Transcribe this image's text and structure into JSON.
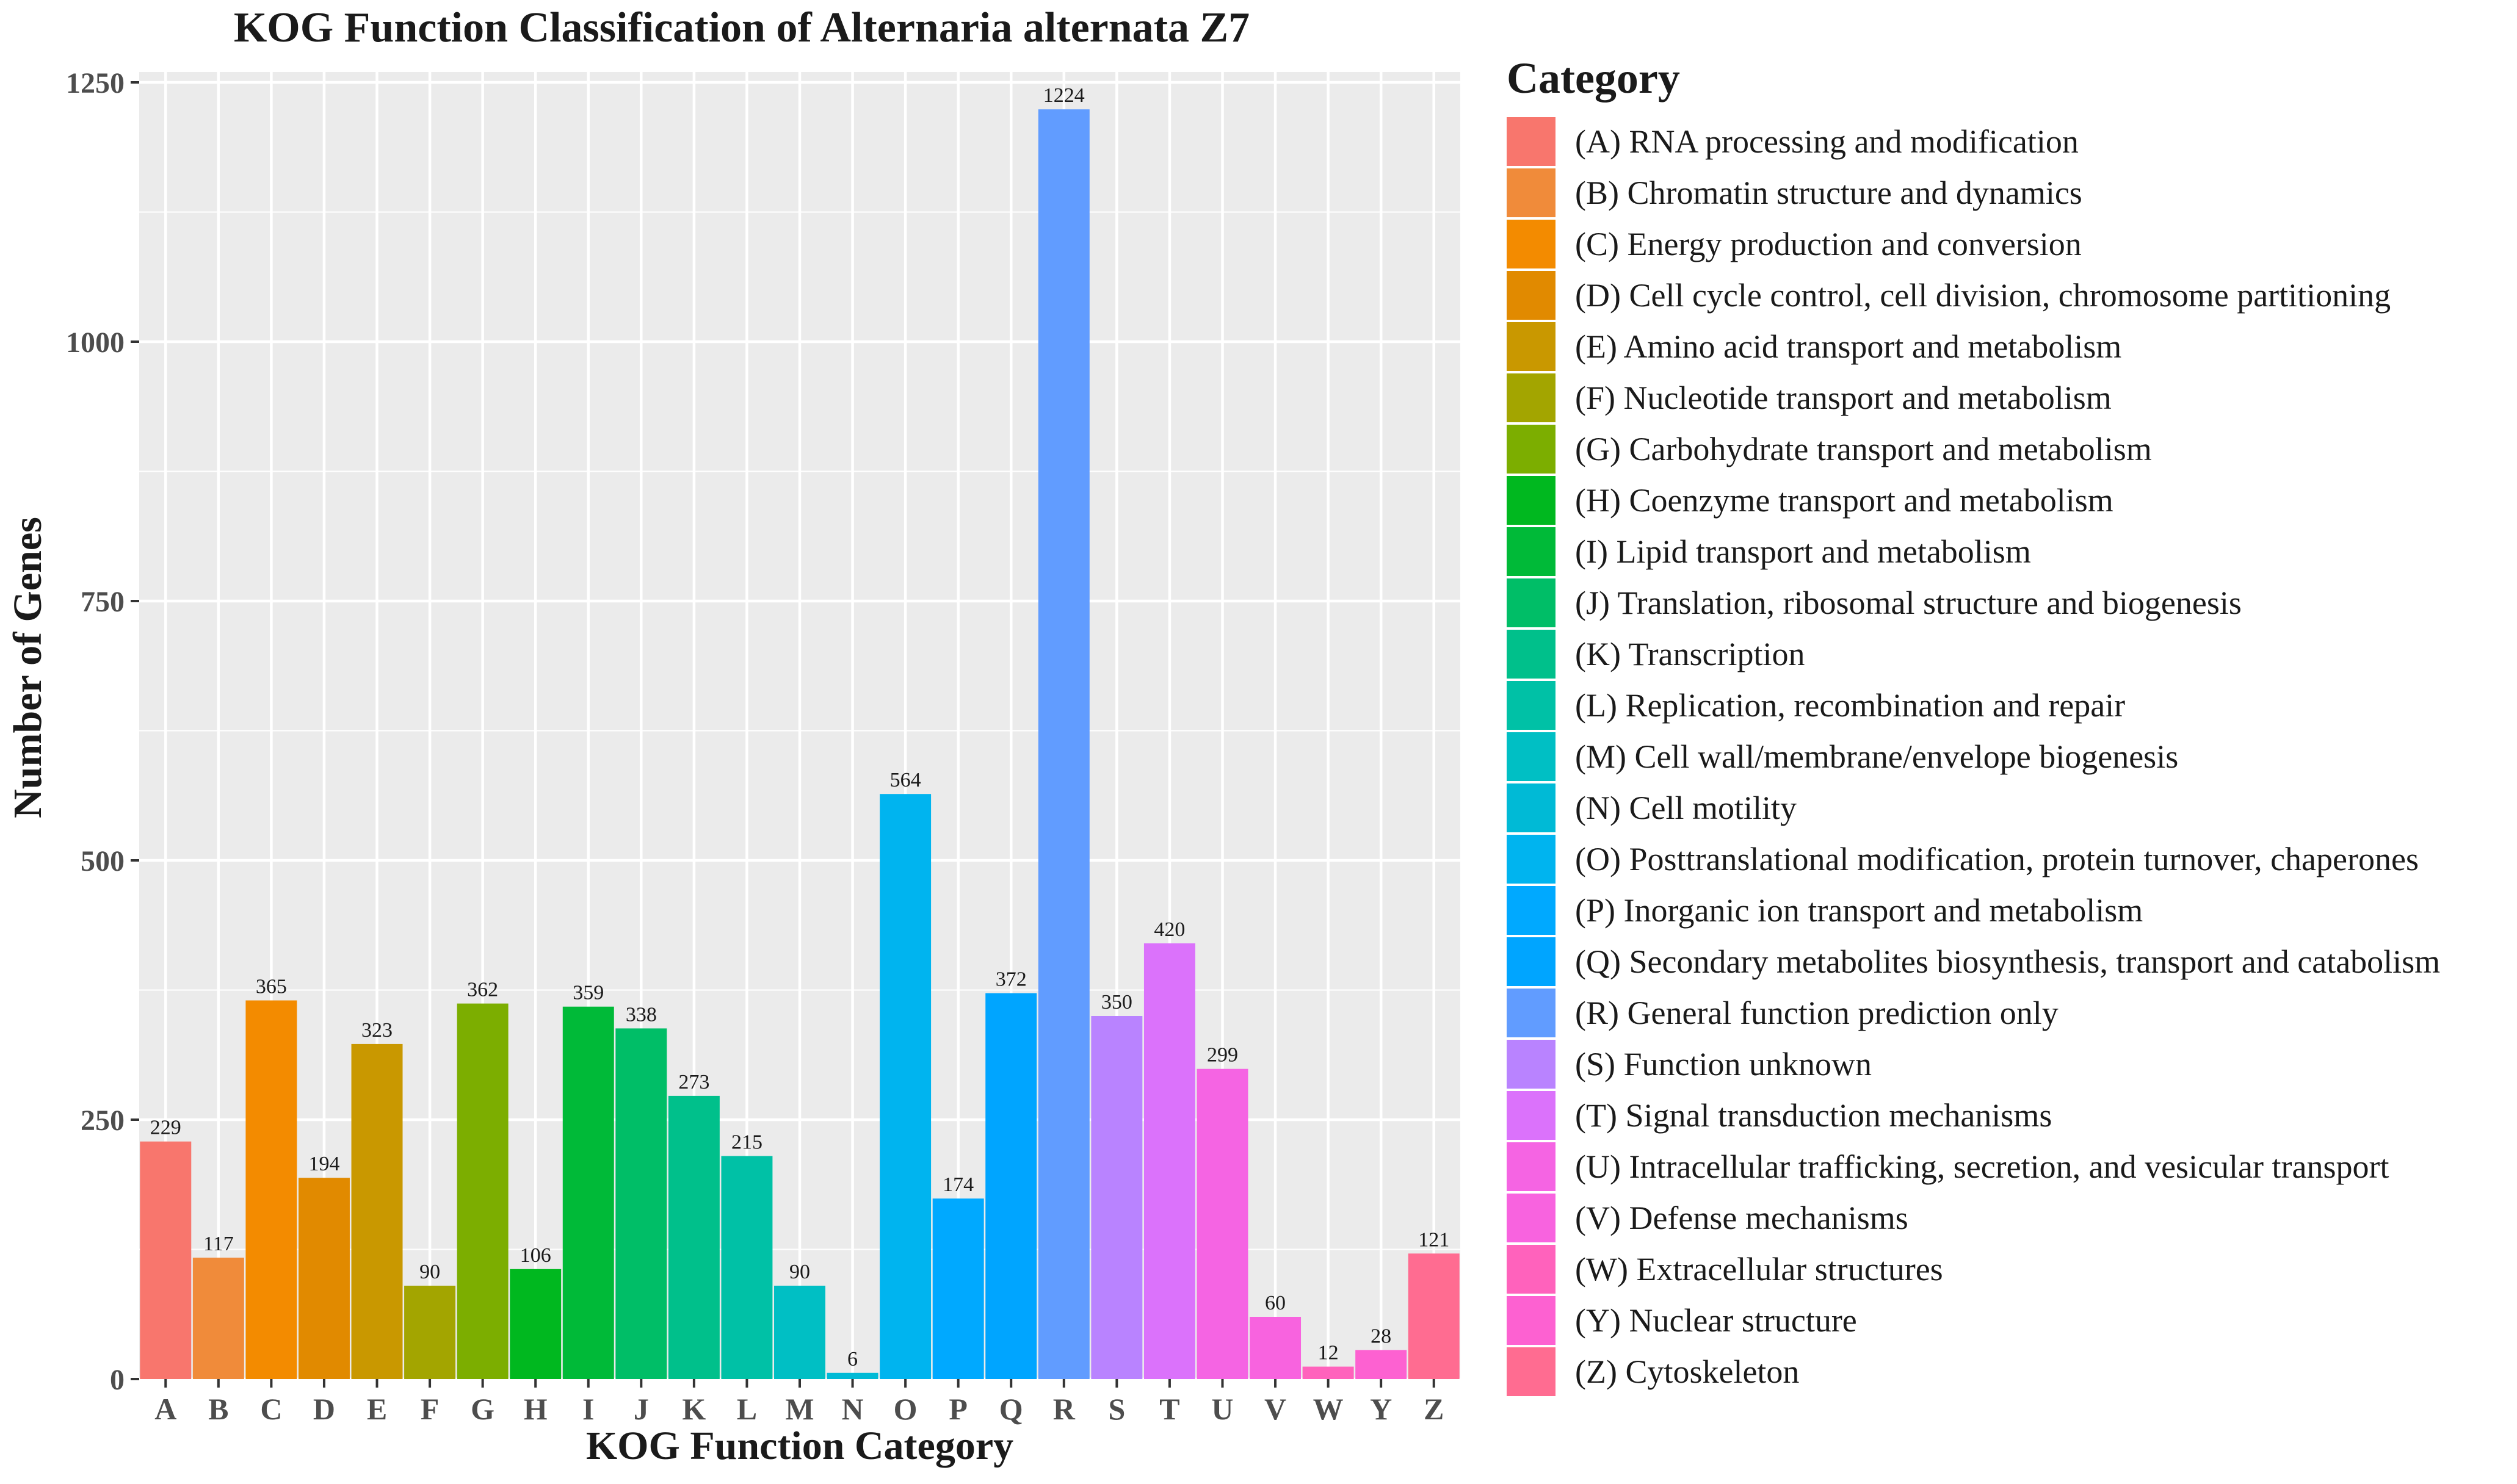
{
  "title": "KOG Function Classification of Alternaria alternata Z7",
  "chart_data": {
    "type": "bar",
    "title": "KOG Function Classification of Alternaria alternata Z7",
    "xlabel": "KOG Function Category",
    "ylabel": "Number of Genes",
    "ylim": [
      0,
      1260
    ],
    "yticks": [
      0,
      250,
      500,
      750,
      1000,
      1250
    ],
    "grid": true,
    "legend_position": "right",
    "legend_title": "Category",
    "categories": [
      "A",
      "B",
      "C",
      "D",
      "E",
      "F",
      "G",
      "H",
      "I",
      "J",
      "K",
      "L",
      "M",
      "N",
      "O",
      "P",
      "Q",
      "R",
      "S",
      "T",
      "U",
      "V",
      "W",
      "Y",
      "Z"
    ],
    "values": [
      229,
      117,
      365,
      194,
      323,
      90,
      362,
      106,
      359,
      338,
      273,
      215,
      90,
      6,
      564,
      174,
      372,
      1224,
      350,
      420,
      299,
      60,
      12,
      28,
      121
    ],
    "data_labels": [
      "229",
      "117",
      "365",
      "194",
      "323",
      "90",
      "362",
      "106",
      "359",
      "338",
      "273",
      "215",
      "90",
      "6",
      "564",
      "174",
      "372",
      "1224",
      "350",
      "420",
      "299",
      "60",
      "12",
      "28",
      "121"
    ],
    "legend_labels": [
      "(A) RNA processing and modification",
      "(B) Chromatin structure and dynamics",
      "(C) Energy production and conversion",
      "(D) Cell cycle control, cell division, chromosome partitioning",
      "(E) Amino acid transport and metabolism",
      "(F) Nucleotide transport and metabolism",
      "(G) Carbohydrate transport and metabolism",
      "(H) Coenzyme transport and metabolism",
      "(I) Lipid transport and metabolism",
      "(J) Translation, ribosomal structure and biogenesis",
      "(K) Transcription",
      "(L) Replication, recombination and repair",
      "(M) Cell wall/membrane/envelope biogenesis",
      "(N) Cell motility",
      "(O) Posttranslational modification, protein turnover, chaperones",
      "(P) Inorganic ion transport and metabolism",
      "(Q) Secondary metabolites biosynthesis, transport and catabolism",
      "(R) General function prediction only",
      "(S) Function unknown",
      "(T) Signal transduction mechanisms",
      "(U) Intracellular trafficking, secretion, and vesicular transport",
      "(V) Defense mechanisms",
      "(W) Extracellular structures",
      "(Y) Nuclear structure",
      "(Z) Cytoskeleton"
    ],
    "colors": [
      "#F8766D",
      "#F08B3A",
      "#F38B00",
      "#E18A00",
      "#C99800",
      "#A3A500",
      "#7CAE00",
      "#00B81F",
      "#00BA38",
      "#00BE67",
      "#00C08B",
      "#00C1A6",
      "#00BFC4",
      "#00BAD6",
      "#00B4EF",
      "#00A9FF",
      "#00A5FF",
      "#619CFF",
      "#B983FF",
      "#DB72FB",
      "#F564E3",
      "#F863DF",
      "#FF62BC",
      "#FD61D1",
      "#FF6C91"
    ],
    "panel_background": "#EBEBEB",
    "grid_color": "#FFFFFF"
  }
}
